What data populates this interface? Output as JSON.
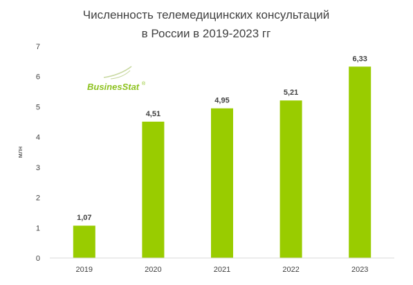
{
  "chart_data": {
    "type": "bar",
    "title_lines": [
      "Численность телемедицинских консультаций",
      "в России в  2019-2023 гг"
    ],
    "xlabel": "",
    "ylabel": "млн",
    "categories": [
      "2019",
      "2020",
      "2021",
      "2022",
      "2023"
    ],
    "values": [
      1.07,
      4.51,
      4.95,
      5.21,
      6.33
    ],
    "value_labels": [
      "1,07",
      "4,51",
      "4,95",
      "5,21",
      "6,33"
    ],
    "ylim": [
      0,
      7
    ],
    "yticks": [
      0,
      1,
      2,
      3,
      4,
      5,
      6,
      7
    ],
    "grid": false,
    "legend": "none",
    "bar_color": "#99cc00"
  },
  "logo": {
    "text": "BusinesStat",
    "mark": "®",
    "color": "#8dc21f",
    "icon": "swoosh-icon"
  }
}
